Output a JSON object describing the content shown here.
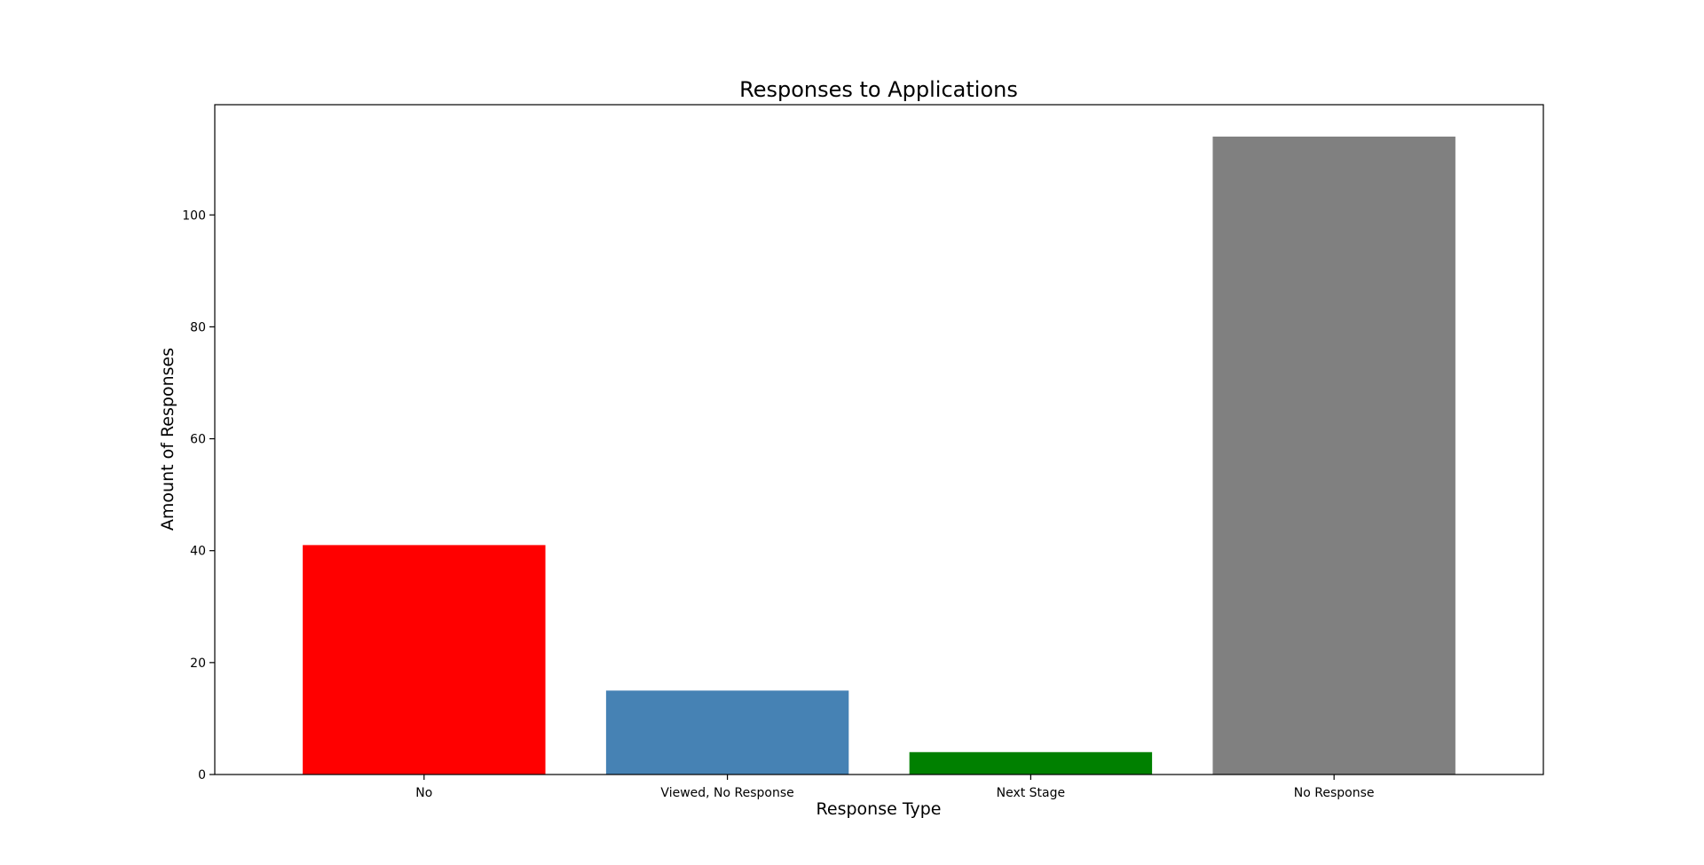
{
  "chart_data": {
    "type": "bar",
    "title": "Responses to Applications",
    "xlabel": "Response Type",
    "ylabel": "Amount of Responses",
    "categories": [
      "No",
      "Viewed, No Response",
      "Next Stage",
      "No Response"
    ],
    "values": [
      41,
      15,
      4,
      114
    ],
    "colors": [
      "#ff0000",
      "#4682b4",
      "#008000",
      "#808080"
    ],
    "ylim": [
      0,
      119.7
    ],
    "yticks": [
      0,
      20,
      40,
      60,
      80,
      100
    ],
    "grid": false,
    "legend": "none"
  }
}
